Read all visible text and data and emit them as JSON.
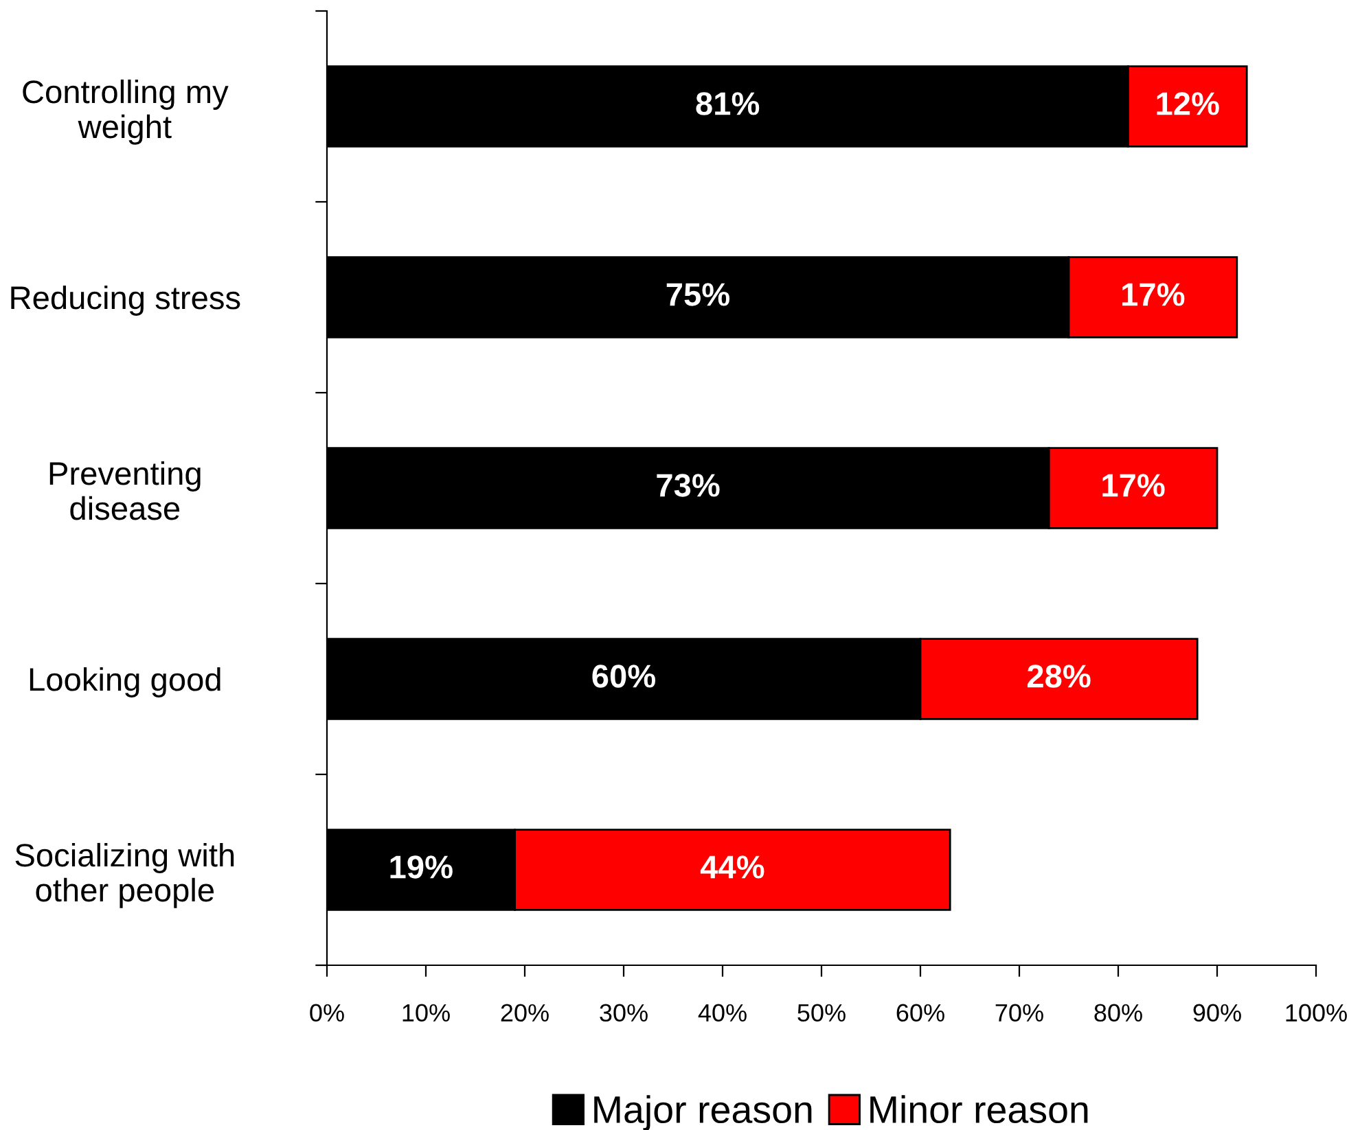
{
  "chart_data": {
    "type": "bar",
    "orientation": "horizontal",
    "stacked": true,
    "categories": [
      "Controlling my\nweight",
      "Reducing stress",
      "Preventing\ndisease",
      "Looking good",
      "Socializing with\nother people"
    ],
    "series": [
      {
        "name": "Major reason",
        "color": "#000000",
        "values": [
          81,
          75,
          73,
          60,
          19
        ],
        "value_labels": [
          "81%",
          "75%",
          "73%",
          "60%",
          "19%"
        ]
      },
      {
        "name": "Minor reason",
        "color": "#ff0000",
        "values": [
          12,
          17,
          17,
          28,
          44
        ],
        "value_labels": [
          "12%",
          "17%",
          "17%",
          "28%",
          "44%"
        ]
      }
    ],
    "xlim": [
      0,
      100
    ],
    "xticks": [
      {
        "value": 0,
        "label": "0%"
      },
      {
        "value": 10,
        "label": "10%"
      },
      {
        "value": 20,
        "label": "20%"
      },
      {
        "value": 30,
        "label": "30%"
      },
      {
        "value": 40,
        "label": "40%"
      },
      {
        "value": 50,
        "label": "50%"
      },
      {
        "value": 60,
        "label": "60%"
      },
      {
        "value": 70,
        "label": "70%"
      },
      {
        "value": 80,
        "label": "80%"
      },
      {
        "value": 90,
        "label": "90%"
      },
      {
        "value": 100,
        "label": "100%"
      }
    ],
    "grid": false,
    "legend": "bottom"
  }
}
